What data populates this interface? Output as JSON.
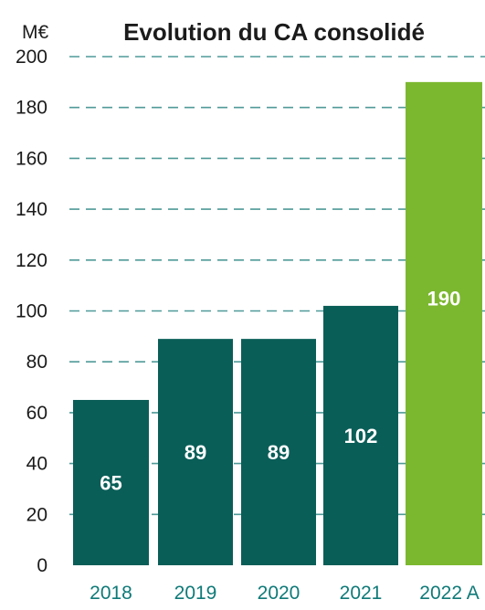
{
  "chart_data": {
    "type": "bar",
    "title": "Evolution du CA consolidé",
    "unit_label": "M€",
    "xlabel": "",
    "ylabel": "",
    "ylim": [
      0,
      200
    ],
    "yticks": [
      0,
      20,
      40,
      60,
      80,
      100,
      120,
      140,
      160,
      180,
      200
    ],
    "categories": [
      "2018",
      "2019",
      "2020",
      "2021",
      "2022 A"
    ],
    "values": [
      65,
      89,
      89,
      102,
      190
    ],
    "data_labels": [
      "65",
      "89",
      "89",
      "102",
      "190"
    ],
    "bar_colors": [
      "#0a5e58",
      "#0a5e58",
      "#0a5e58",
      "#0a5e58",
      "#7cb82f"
    ],
    "gridline_style": "dashed",
    "gridline_color": "#4f9a98",
    "xtick_color": "#0f7a78",
    "legend": "none"
  }
}
